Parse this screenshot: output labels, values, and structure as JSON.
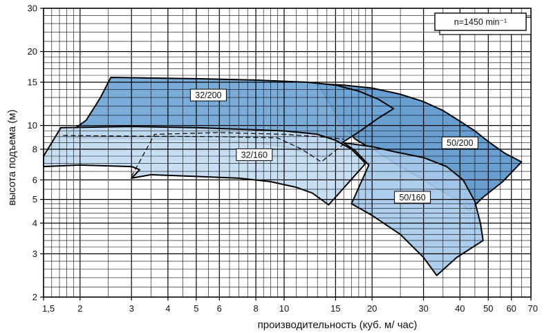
{
  "chart_data": {
    "type": "area",
    "xlabel": "производительность (куб. м/ час)",
    "ylabel": "высота подъема (м)",
    "x_scale": "log",
    "y_scale": "log",
    "xlim": [
      1.5,
      70
    ],
    "ylim": [
      2,
      30
    ],
    "x_ticks": [
      1.5,
      2,
      3,
      4,
      5,
      6,
      8,
      10,
      15,
      20,
      30,
      40,
      50,
      60,
      70
    ],
    "x_tick_labels": [
      "1,5",
      "2",
      "3",
      "4",
      "5",
      "6",
      "8",
      "10",
      "15",
      "20",
      "30",
      "40",
      "50",
      "60",
      "70"
    ],
    "y_ticks": [
      2,
      3,
      4,
      5,
      6,
      8,
      10,
      15,
      20,
      30
    ],
    "y_tick_labels": [
      "2",
      "3",
      "4",
      "5",
      "6",
      "8",
      "10",
      "15",
      "20",
      "30"
    ],
    "grid": true,
    "annotation": "n=1450 min⁻¹",
    "colors": {
      "area_50_200": "#5b96cc",
      "area_32_200": "#6fa5d6",
      "area_50_160": "#a6c9ea",
      "area_32_160": "#c3dbf1",
      "outline": "#000000"
    },
    "series": [
      {
        "name": "50/200",
        "label_at": [
          40,
          8.5
        ],
        "outline": [
          [
            13,
            14.8
          ],
          [
            16,
            14.6
          ],
          [
            20,
            14.2
          ],
          [
            25,
            13.4
          ],
          [
            30,
            12.5
          ],
          [
            35,
            11.5
          ],
          [
            40,
            10.4
          ],
          [
            45,
            9.5
          ],
          [
            50,
            8.6
          ],
          [
            57,
            7.7
          ],
          [
            65,
            7.1
          ],
          [
            56,
            5.9
          ],
          [
            48,
            5.1
          ],
          [
            43,
            4.5
          ],
          [
            39,
            5.0
          ],
          [
            33,
            5.6
          ],
          [
            28,
            6.3
          ],
          [
            24,
            7.0
          ],
          [
            22,
            7.5
          ],
          [
            20,
            8.0
          ],
          [
            17.5,
            8.8
          ],
          [
            15.5,
            10.3
          ],
          [
            14.5,
            12.0
          ],
          [
            13.5,
            13.8
          ]
        ]
      },
      {
        "name": "32/200",
        "label_at": [
          5.5,
          13.3
        ],
        "outline": [
          [
            2.55,
            15.7
          ],
          [
            5,
            15.5
          ],
          [
            8,
            15.3
          ],
          [
            12,
            15.0
          ],
          [
            15,
            14.6
          ],
          [
            18,
            13.8
          ],
          [
            21,
            12.8
          ],
          [
            23.7,
            11.7
          ],
          [
            21,
            10.7
          ],
          [
            18,
            9.4
          ],
          [
            16.5,
            8.8
          ],
          [
            15.3,
            8.3
          ],
          [
            13.8,
            7.4
          ],
          [
            12,
            7.7
          ],
          [
            10,
            8.2
          ],
          [
            8,
            8.5
          ],
          [
            6,
            8.7
          ],
          [
            4,
            8.8
          ],
          [
            1.8,
            8.9
          ],
          [
            1.8,
            9.2
          ],
          [
            2.1,
            10.5
          ],
          [
            2.35,
            13.0
          ]
        ]
      },
      {
        "name": "50/160",
        "label_at": [
          27.5,
          5.1
        ],
        "outline": [
          [
            16,
            8.5
          ],
          [
            20,
            8.2
          ],
          [
            24,
            7.8
          ],
          [
            30,
            7.4
          ],
          [
            36,
            6.8
          ],
          [
            41,
            6.0
          ],
          [
            45,
            4.9
          ],
          [
            47,
            4.0
          ],
          [
            48,
            3.4
          ],
          [
            39,
            2.9
          ],
          [
            33.3,
            2.45
          ],
          [
            30,
            2.9
          ],
          [
            25,
            3.6
          ],
          [
            20,
            4.3
          ],
          [
            17,
            4.8
          ],
          [
            19.5,
            6.9
          ],
          [
            17.5,
            7.9
          ]
        ]
      },
      {
        "name": "32/160",
        "label_at": [
          7.9,
          7.6
        ],
        "outline": [
          [
            1.5,
            7.5
          ],
          [
            1.72,
            9.8
          ],
          [
            3,
            9.9
          ],
          [
            5,
            9.8
          ],
          [
            8,
            9.6
          ],
          [
            10,
            9.5
          ],
          [
            12,
            9.3
          ],
          [
            13,
            9.2
          ],
          [
            15,
            8.7
          ],
          [
            17,
            8.0
          ],
          [
            19,
            7.0
          ],
          [
            14.2,
            4.75
          ],
          [
            12.5,
            5.3
          ],
          [
            11,
            5.6
          ],
          [
            9,
            5.9
          ],
          [
            7,
            6.1
          ],
          [
            5,
            6.2
          ],
          [
            3.5,
            6.3
          ],
          [
            3,
            6.1
          ],
          [
            3.2,
            6.6
          ],
          [
            3.0,
            6.8
          ],
          [
            2.0,
            6.9
          ],
          [
            1.5,
            6.8
          ]
        ]
      }
    ],
    "dashed_lines": [
      [
        [
          1.75,
          9.1
        ],
        [
          3,
          9.05
        ],
        [
          6,
          9.0
        ],
        [
          9.5,
          8.9
        ],
        [
          11.5,
          8.0
        ],
        [
          13.4,
          7.1
        ],
        [
          14.4,
          7.6
        ],
        [
          16.2,
          8.5
        ]
      ],
      [
        [
          3.0,
          6.2
        ],
        [
          3.6,
          9.2
        ],
        [
          6,
          9.35
        ],
        [
          10,
          9.2
        ],
        [
          13,
          9.0
        ],
        [
          16,
          8.8
        ]
      ]
    ]
  }
}
